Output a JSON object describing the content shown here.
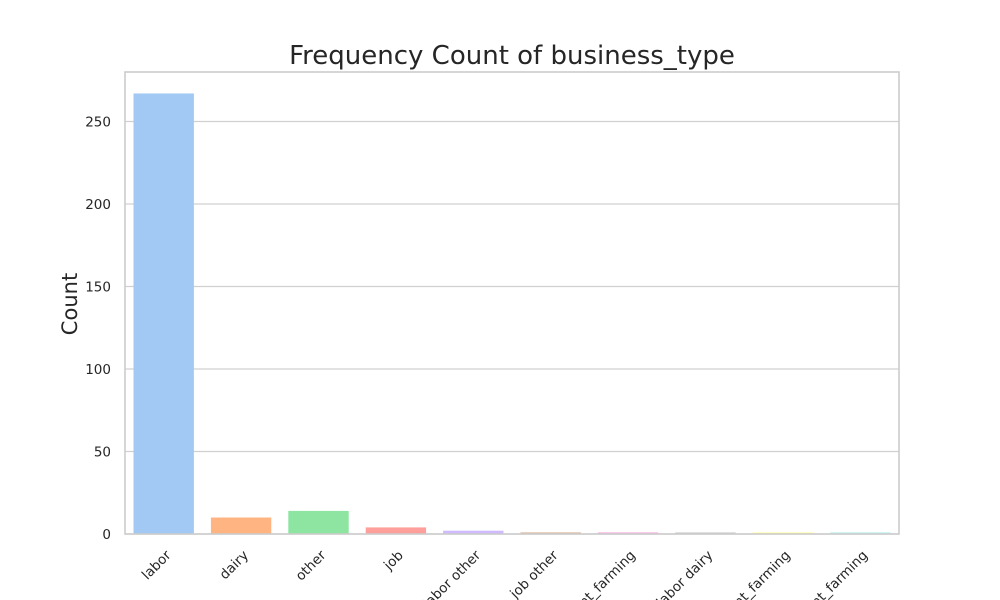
{
  "chart_data": {
    "type": "bar",
    "title": "Frequency Count of business_type",
    "xlabel": "",
    "ylabel": "Count",
    "categories": [
      "labor",
      "dairy",
      "other",
      "job",
      "labor other",
      "job other",
      "plant_farming",
      "labor dairy",
      "plant_farming",
      "plant_farming"
    ],
    "values": [
      267,
      10,
      14,
      4,
      2,
      1,
      1,
      1,
      1,
      1
    ],
    "colors": [
      "#a1c9f4",
      "#ffb482",
      "#8de5a1",
      "#ff9f9b",
      "#d0bbff",
      "#debb9b",
      "#fab0e4",
      "#cfcfcf",
      "#fffea3",
      "#b9f2f0"
    ],
    "yticks": [
      0,
      50,
      100,
      150,
      200,
      250
    ],
    "ylim": [
      0,
      280
    ],
    "grid": true,
    "legend": "none"
  }
}
